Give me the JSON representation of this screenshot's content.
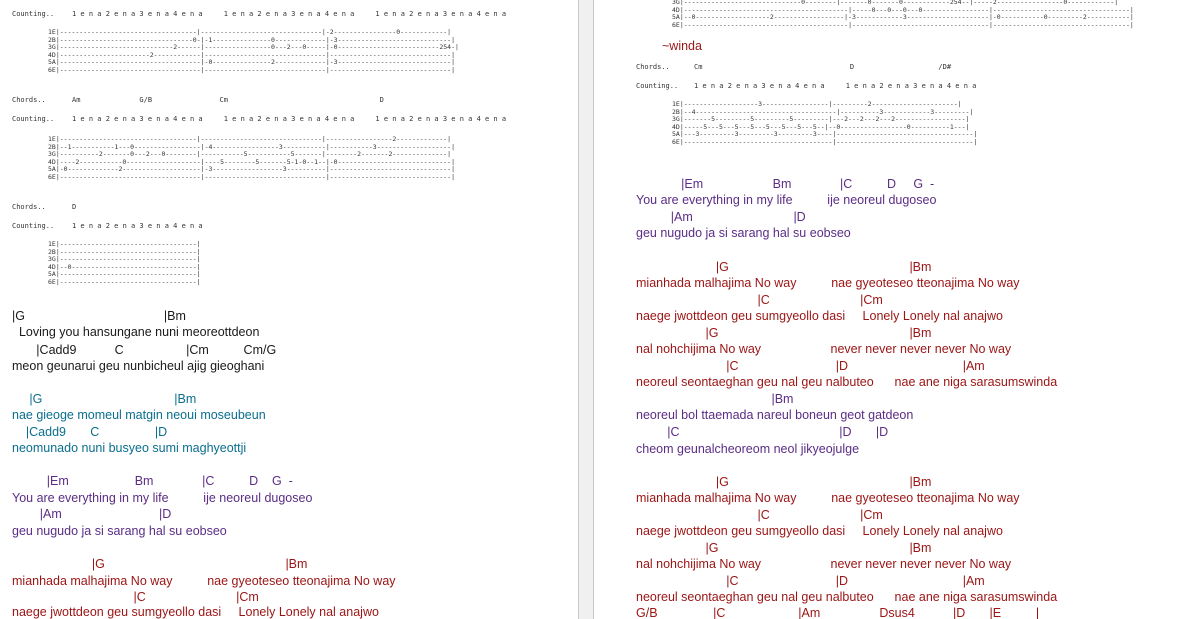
{
  "left": {
    "tab1": {
      "counting_label": "Counting..",
      "counting": "1 e n a 2 e n a 3 e n a 4 e n a     1 e n a 2 e n a 3 e n a 4 e n a     1 e n a 2 e n a 3 e n a 4 e n a",
      "staff": "1E|-----------------------------------|-------------------------------|-2----------------0------------|\n2B|----------------------------------0-|-1---------------0-------------|-3-----------------------------|\n3G|-----------------------------2------|-----------------0---2---0-----|-0--------------------------254-|\n4D|-----------------------2------------|-------------------------------|-------------------------------|\n5A|------------------------------------|-0---------------2-------------|-3-----------------------------|\n6E|------------------------------------|-------------------------------|-------------------------------|"
    },
    "chords2": {
      "label": "Chords..",
      "line": "Am              G/B                Cm                                    D"
    },
    "tab2": {
      "counting_label": "Counting..",
      "counting": "1 e n a 2 e n a 3 e n a 4 e n a     1 e n a 2 e n a 3 e n a 4 e n a     1 e n a 2 e n a 3 e n a 4 e n a",
      "staff": "1E|-----------------------------------|-------------------------------|-----------------2-------------|\n2B|--1-----------1---0-----------------|-4-----------------3-----------|-----------3-------------------|\n3G|----------2-------0---2---0--------|-----------5-----------5-------|--------2-------2--------------|\n4D|----2-----------0-------------------|----5--------5-------5-1-0--1--|-0-----------------------------|\n5A|-0-------------2--------------------|-3------------------3----------|-------------------------------|\n6E|------------------------------------|-------------------------------|-------------------------------|"
    },
    "chords3": {
      "label": "Chords..",
      "line": "D"
    },
    "tab3": {
      "counting_label": "Counting..",
      "counting": "1 e n a 2 e n a 3 e n a 4 e n a",
      "staff": "1E|-----------------------------------|\n2B|-----------------------------------|\n3G|-----------------------------------|\n4D|--0--------------------------------|\n5A|-----------------------------------|\n6E|-----------------------------------|"
    },
    "lyrics": [
      "|G                                        |Bm",
      "  Loving you hansungane nuni meoreottdeon",
      "       |Cadd9           C                  |Cm          Cm/G",
      "meon geunarui geu nunbicheul ajig gieoghani",
      "",
      "     |G                                      |Bm",
      "nae gieoge momeul matgin neoui moseubeun",
      "    |Cadd9       C                |D",
      "neomunado nuni busyeo sumi maghyeottji",
      "",
      "          |Em                   Bm              |C          D    G  -",
      "You are everything in my life          ije neoreul dugoseo",
      "        |Am                            |D",
      "geu nugudo ja si sarang hal su eobseo",
      "",
      "                       |G                                                    |Bm",
      "mianhada malhajima No way          nae gyeoteseo tteonajima No way",
      "                                   |C                          |Cm",
      "naege jwottdeon geu sumgyeollo dasi     Lonely Lonely nal anajwo"
    ]
  },
  "right": {
    "tab0_staff": "3G|------------------------------0--------|-------0-------0------------254--|-----2-----------------0------------|\n4D|------------------------------------------|-----0---0---0---0-----------------|-----------------------------------|\n5A|--0-------------------2------------------|-3------------3---------------------|-0-----------0---------2-----------|\n6E|------------------------------------------|-----------------------------------|-----------------------------------|",
    "winda": "~winda",
    "chords_label": "Chords..",
    "chords_line": "Cm                                   D                    /D#",
    "counting_label": "Counting..",
    "counting": "1 e n a 2 e n a 3 e n a 4 e n a     1 e n a 2 e n a 3 e n a 4 e n a",
    "tab_staff": "1E|-------------------3-----------------|---------2----------------------|\n2B|--4------------------------------------|----------3------------3---------|\n3G|-------5---------5---------5---------|---2---2---2---2------------------|\n4D|-----5---5---5---5---5---5---5---5--|--0-----------------0----------1---|\n5A|---3---------3---------3---------3----|-----------------------------------|\n6E|--------------------------------------|-----------------------------------|",
    "lyrics": [
      "             |Em                    Bm              |C          D     G  -",
      "You are everything in my life          ije neoreul dugoseo",
      "          |Am                             |D",
      "geu nugudo ja si sarang hal su eobseo",
      "",
      "                       |G                                                    |Bm",
      "mianhada malhajima No way          nae gyeoteseo tteonajima No way",
      "                                   |C                          |Cm",
      "naege jwottdeon geu sumgyeollo dasi     Lonely Lonely nal anajwo",
      "                    |G                                                       |Bm",
      "nal nohchijima No way                    never never never never No way",
      "                          |C                            |D                                 |Am",
      "neoreul seontaeghan geu nal geu nalbuteo      nae ane niga sarasumswinda",
      "                                       |Bm",
      "neoreul bol ttaemada nareul boneun geot gatdeon",
      "         |C                                              |D       |D",
      "cheom geunalcheoreom neol jikyeojulge",
      "",
      "                       |G                                                    |Bm",
      "mianhada malhajima No way          nae gyeoteseo tteonajima No way",
      "                                   |C                          |Cm",
      "naege jwottdeon geu sumgyeollo dasi     Lonely Lonely nal anajwo",
      "                    |G                                                       |Bm",
      "nal nohchijima No way                    never never never never No way",
      "                          |C                            |D                                 |Am",
      "neoreul seontaeghan geu nal geu nalbuteo      nae ane niga sarasumswinda",
      "G/B                |C                     |Am                 Dsus4           |D       |E          |"
    ]
  }
}
